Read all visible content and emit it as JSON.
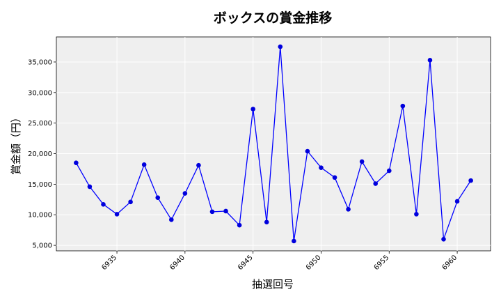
{
  "chart_data": {
    "type": "line",
    "title": "ボックスの賞金推移",
    "xlabel": "抽選回号",
    "ylabel": "賞金額（円）",
    "x": [
      6932,
      6933,
      6934,
      6935,
      6936,
      6937,
      6938,
      6939,
      6940,
      6941,
      6942,
      6943,
      6944,
      6945,
      6946,
      6947,
      6948,
      6949,
      6950,
      6951,
      6952,
      6953,
      6954,
      6955,
      6956,
      6957,
      6958,
      6959,
      6960,
      6961
    ],
    "series": [
      {
        "values": [
          18500,
          14600,
          11700,
          10100,
          12100,
          18200,
          12800,
          9200,
          13500,
          18100,
          10500,
          10600,
          8300,
          27300,
          8800,
          37500,
          5700,
          20400,
          17700,
          16100,
          10900,
          18700,
          15100,
          17200,
          27800,
          10100,
          35300,
          6000,
          12200,
          15600
        ]
      }
    ],
    "xticks": [
      6935,
      6940,
      6945,
      6950,
      6955,
      6960
    ],
    "xtick_labels": [
      "6935",
      "6940",
      "6945",
      "6950",
      "6955",
      "6960"
    ],
    "yticks": [
      5000,
      10000,
      15000,
      20000,
      25000,
      30000,
      35000
    ],
    "ytick_labels": [
      "5,000",
      "10,000",
      "15,000",
      "20,000",
      "25,000",
      "30,000",
      "35,000"
    ],
    "xlim": [
      6930.55,
      6962.45
    ],
    "ylim": [
      4100,
      39100
    ],
    "grid": true,
    "line_color": "#0000ff",
    "marker_color": "#0000dd",
    "plot_background": "#efefef"
  }
}
